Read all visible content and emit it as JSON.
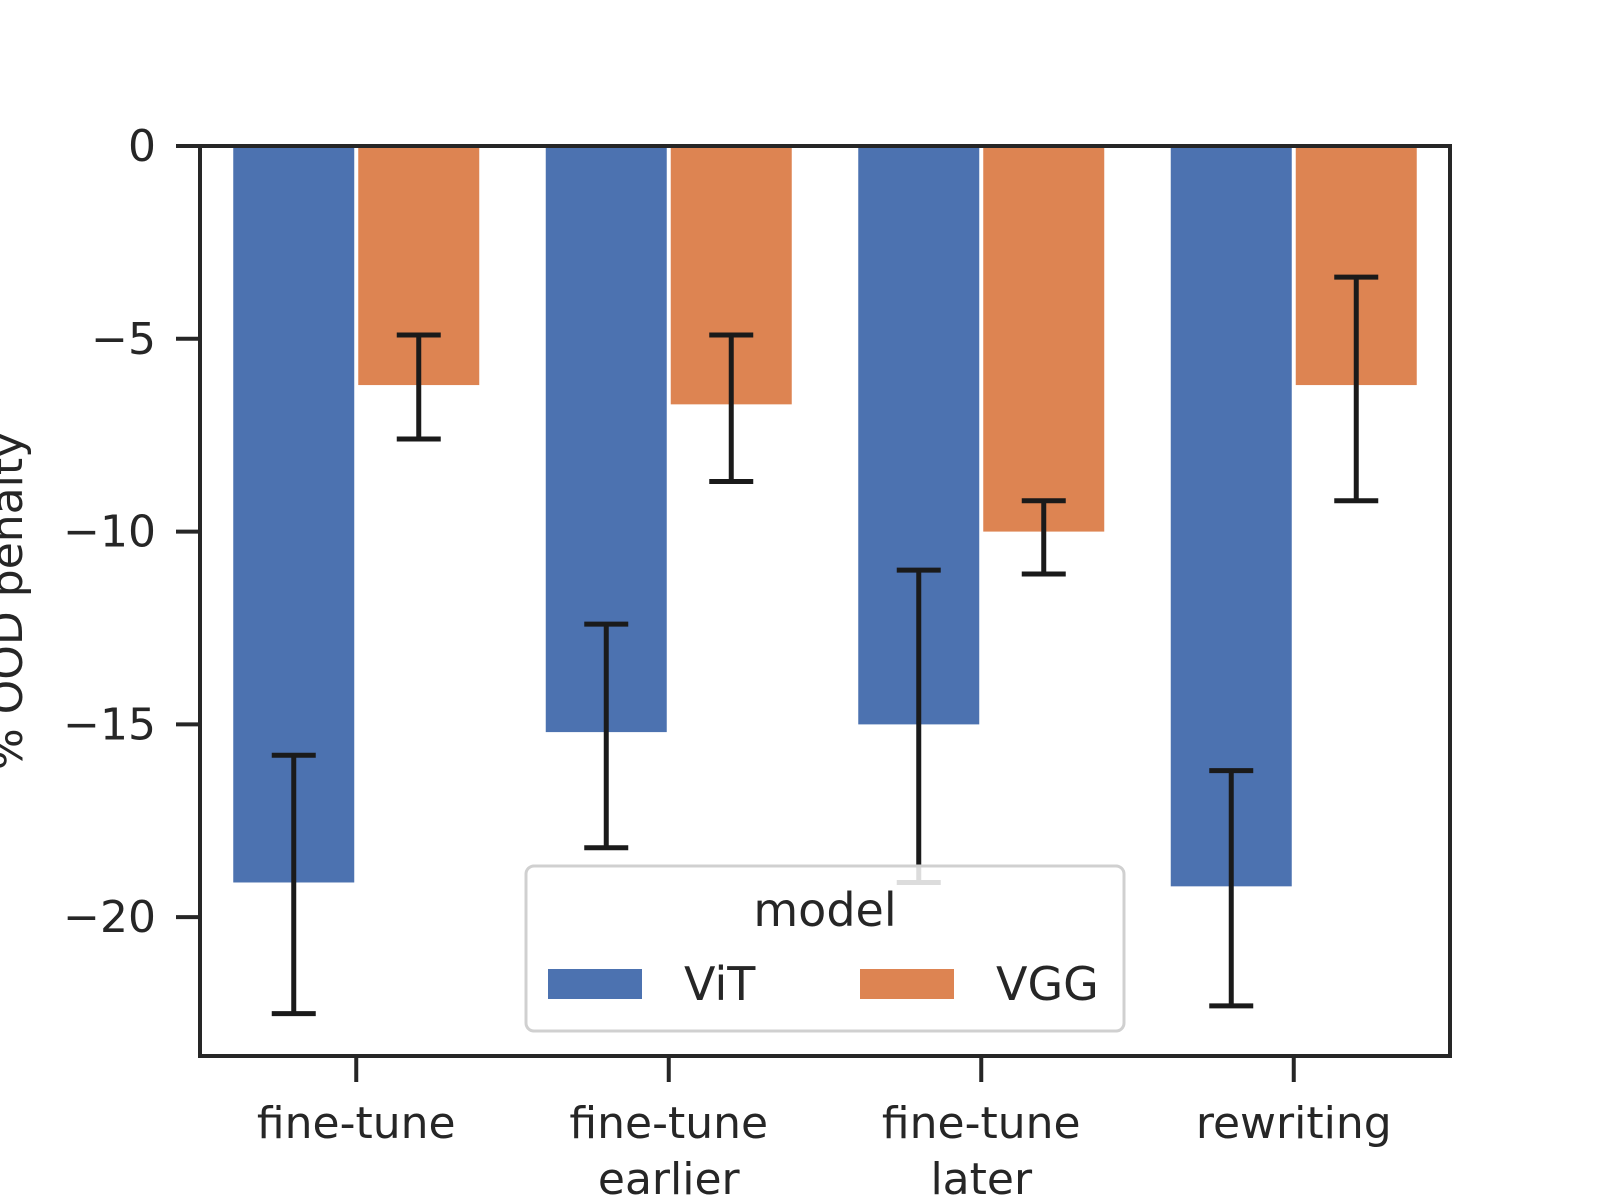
{
  "chart_data": {
    "type": "bar",
    "title": "",
    "xlabel": "",
    "ylabel": "% OOD penalty",
    "ylim": [
      -23.6,
      0
    ],
    "yticks": [
      0,
      -5,
      -10,
      -15,
      -20
    ],
    "ytick_labels": [
      "0",
      "−5",
      "−10",
      "−15",
      "−20"
    ],
    "categories": [
      {
        "label_lines": [
          "fine-tune"
        ]
      },
      {
        "label_lines": [
          "fine-tune",
          "earlier"
        ]
      },
      {
        "label_lines": [
          "fine-tune",
          "later"
        ]
      },
      {
        "label_lines": [
          "rewriting"
        ]
      }
    ],
    "series": [
      {
        "name": "ViT",
        "color": "#4c72b0",
        "values": [
          -19.1,
          -15.2,
          -15.0,
          -19.2
        ],
        "err_low": [
          -22.5,
          -18.2,
          -19.1,
          -22.3
        ],
        "err_high": [
          -15.8,
          -12.4,
          -11.0,
          -16.2
        ]
      },
      {
        "name": "VGG",
        "color": "#dd8452",
        "values": [
          -6.2,
          -6.7,
          -10.0,
          -6.2
        ],
        "err_low": [
          -7.6,
          -8.7,
          -11.1,
          -9.2
        ],
        "err_high": [
          -4.9,
          -4.9,
          -9.2,
          -3.4
        ]
      }
    ],
    "legend": {
      "title": "model",
      "placement": "bottom-center"
    },
    "grid": false
  }
}
